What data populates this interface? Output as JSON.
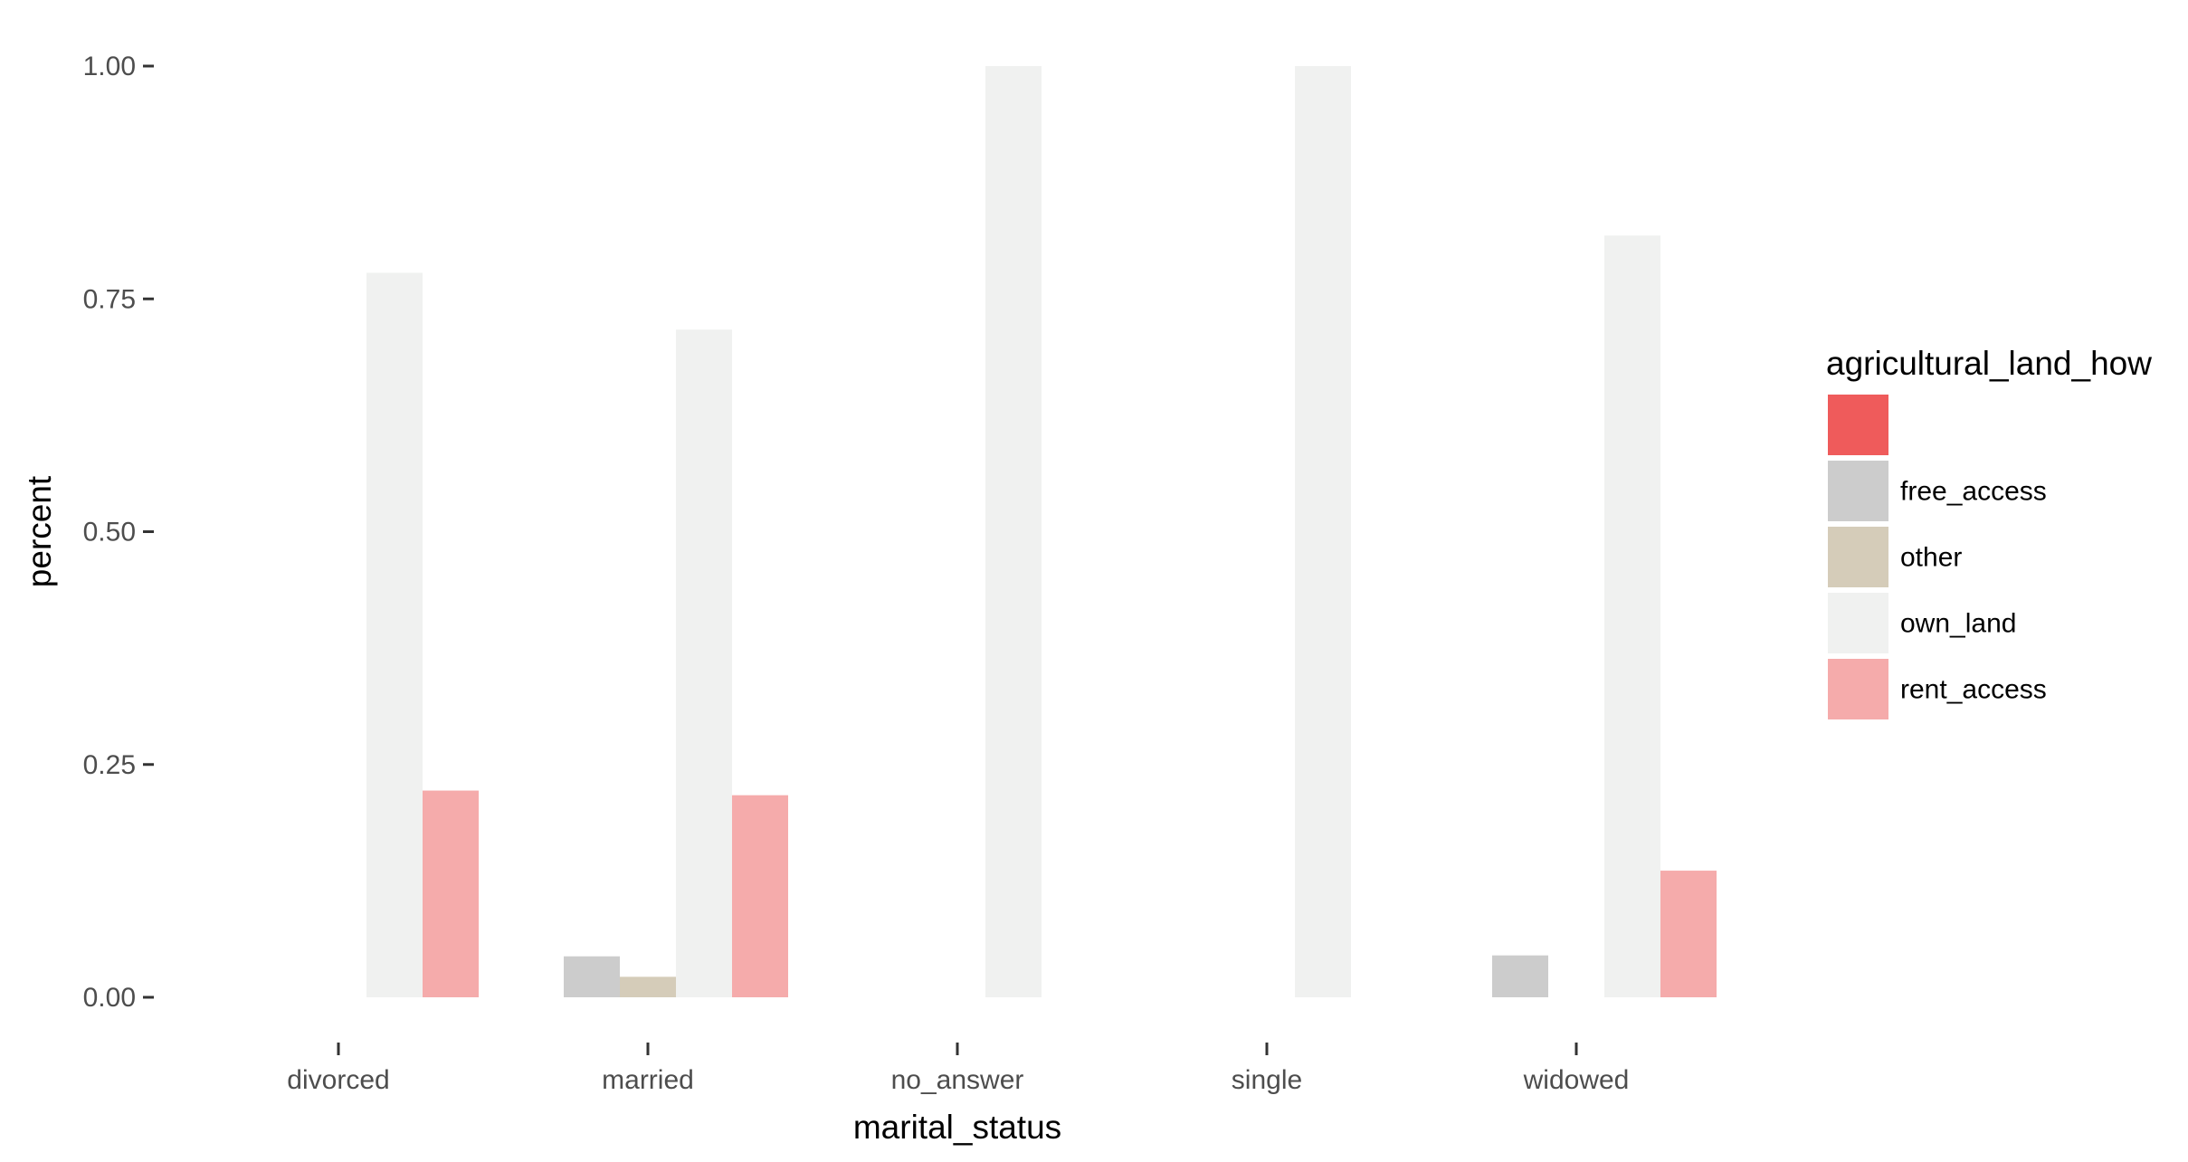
{
  "chart_data": {
    "type": "bar",
    "title": "",
    "xlabel": "marital_status",
    "ylabel": "percent",
    "ylim": [
      0,
      1
    ],
    "yticks": [
      "0.00",
      "0.25",
      "0.50",
      "0.75",
      "1.00"
    ],
    "ytick_values": [
      0,
      0.25,
      0.5,
      0.75,
      1.0
    ],
    "categories": [
      "divorced",
      "married",
      "no_answer",
      "single",
      "widowed"
    ],
    "legend": {
      "title": "agricultural_land_how",
      "placement": "right"
    },
    "series": [
      {
        "name": "",
        "color": "#ef5b5b",
        "values": [
          0,
          0,
          0,
          0,
          0
        ]
      },
      {
        "name": "free_access",
        "color": "#cccccc",
        "values": [
          0,
          0.044,
          0,
          0,
          0.045
        ]
      },
      {
        "name": "other",
        "color": "#d5ccb9",
        "values": [
          0,
          0.022,
          0,
          0,
          0
        ]
      },
      {
        "name": "own_land",
        "color": "#f0f1f0",
        "values": [
          0.778,
          0.717,
          1.0,
          1.0,
          0.818
        ]
      },
      {
        "name": "rent_access",
        "color": "#f5abab",
        "values": [
          0.222,
          0.217,
          0,
          0,
          0.136
        ]
      }
    ]
  }
}
